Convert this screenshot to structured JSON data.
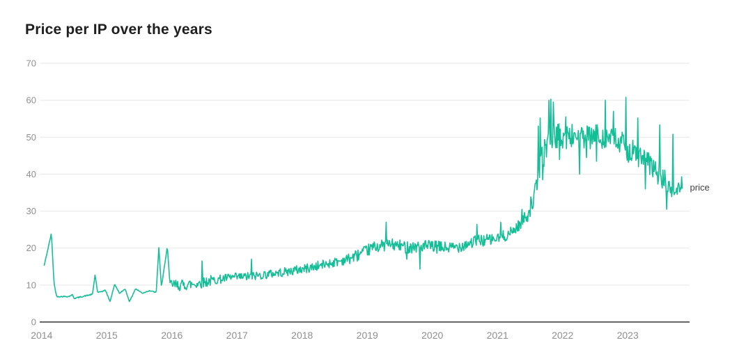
{
  "chart": {
    "title": "Price per IP over the years",
    "series_label": "price"
  },
  "colors": {
    "line": "#14be96",
    "grid": "#e7e7e7",
    "axis": "#333333",
    "tick": "#8f8f8f",
    "title": "#1e1e1e",
    "series_label": "#3f3f3f",
    "background": "#ffffff"
  },
  "chart_data": {
    "type": "line",
    "title": "Price per IP over the years",
    "xlabel": "",
    "ylabel": "",
    "x_ticks": [
      "2014",
      "2015",
      "2016",
      "2017",
      "2018",
      "2019",
      "2020",
      "2021",
      "2022",
      "2023"
    ],
    "y_ticks": [
      0,
      10,
      20,
      30,
      40,
      50,
      60,
      70
    ],
    "xlim": [
      2013.97,
      2023.95
    ],
    "ylim": [
      0,
      70
    ],
    "grid": "horizontal-only",
    "legend": {
      "position": "right-of-last-point",
      "label": "price"
    },
    "series": [
      {
        "name": "price",
        "color": "#14be96",
        "x_start": 2014.04,
        "x_end": 2023.84,
        "samples_per_year": 104,
        "seed": 42,
        "trend": [
          [
            2014.04,
            15.3
          ],
          [
            2014.15,
            24.0
          ],
          [
            2014.19,
            10.5
          ],
          [
            2014.23,
            6.9
          ],
          [
            2014.42,
            6.9
          ],
          [
            2014.47,
            7.4
          ],
          [
            2014.5,
            6.4
          ],
          [
            2014.78,
            7.5
          ],
          [
            2014.82,
            12.8
          ],
          [
            2014.86,
            7.9
          ],
          [
            2014.98,
            8.6
          ],
          [
            2015.05,
            5.5
          ],
          [
            2015.12,
            10.2
          ],
          [
            2015.2,
            7.7
          ],
          [
            2015.28,
            9.0
          ],
          [
            2015.35,
            5.5
          ],
          [
            2015.44,
            9.0
          ],
          [
            2015.55,
            7.8
          ],
          [
            2015.65,
            8.5
          ],
          [
            2015.76,
            8.0
          ],
          [
            2015.8,
            20.2
          ],
          [
            2015.84,
            9.4
          ],
          [
            2015.93,
            20.5
          ],
          [
            2015.97,
            10.2
          ],
          [
            2016.1,
            9.9
          ],
          [
            2016.35,
            10.3
          ],
          [
            2016.6,
            11.2
          ],
          [
            2016.9,
            12.0
          ],
          [
            2017.2,
            12.3
          ],
          [
            2017.5,
            13.0
          ],
          [
            2017.8,
            13.7
          ],
          [
            2018.1,
            14.6
          ],
          [
            2018.4,
            15.8
          ],
          [
            2018.7,
            17.0
          ],
          [
            2018.95,
            18.8
          ],
          [
            2019.1,
            20.3
          ],
          [
            2019.35,
            21.0
          ],
          [
            2019.6,
            20.3
          ],
          [
            2019.9,
            20.5
          ],
          [
            2020.1,
            20.2
          ],
          [
            2020.3,
            20.0
          ],
          [
            2020.5,
            21.0
          ],
          [
            2020.7,
            22.0
          ],
          [
            2020.9,
            22.3
          ],
          [
            2021.0,
            22.5
          ],
          [
            2021.2,
            24.0
          ],
          [
            2021.35,
            26.5
          ],
          [
            2021.45,
            29.0
          ],
          [
            2021.55,
            33.0
          ],
          [
            2021.62,
            38.0
          ],
          [
            2021.68,
            44.0
          ],
          [
            2021.74,
            47.0
          ],
          [
            2021.8,
            50.0
          ],
          [
            2021.9,
            50.5
          ],
          [
            2022.05,
            50.0
          ],
          [
            2022.2,
            50.5
          ],
          [
            2022.35,
            49.5
          ],
          [
            2022.5,
            50.0
          ],
          [
            2022.65,
            50.5
          ],
          [
            2022.8,
            49.0
          ],
          [
            2022.95,
            47.5
          ],
          [
            2023.1,
            45.5
          ],
          [
            2023.25,
            44.0
          ],
          [
            2023.4,
            41.5
          ],
          [
            2023.55,
            38.5
          ],
          [
            2023.65,
            35.5
          ],
          [
            2023.73,
            35.0
          ],
          [
            2023.79,
            36.5
          ],
          [
            2023.84,
            38.0
          ]
        ],
        "noise_segments": [
          {
            "from": 2014.04,
            "to": 2015.97,
            "amp": 0.15
          },
          {
            "from": 2015.97,
            "to": 2016.6,
            "amp": 1.5
          },
          {
            "from": 2016.6,
            "to": 2017.8,
            "amp": 1.2
          },
          {
            "from": 2017.8,
            "to": 2018.7,
            "amp": 1.3
          },
          {
            "from": 2018.7,
            "to": 2019.5,
            "amp": 1.6
          },
          {
            "from": 2019.5,
            "to": 2020.8,
            "amp": 1.7
          },
          {
            "from": 2020.8,
            "to": 2021.45,
            "amp": 1.6
          },
          {
            "from": 2021.45,
            "to": 2021.65,
            "amp": 2.6
          },
          {
            "from": 2021.65,
            "to": 2023.1,
            "amp": 3.6
          },
          {
            "from": 2023.1,
            "to": 2023.6,
            "amp": 3.2
          },
          {
            "from": 2023.6,
            "to": 2023.85,
            "amp": 2.2
          }
        ],
        "spikes": [
          [
            2016.46,
            16.5
          ],
          [
            2017.22,
            17.0
          ],
          [
            2019.29,
            27.0
          ],
          [
            2019.61,
            17.0
          ],
          [
            2019.81,
            14.3
          ],
          [
            2020.68,
            26.4
          ],
          [
            2021.05,
            27.0
          ],
          [
            2021.38,
            30.5
          ],
          [
            2021.63,
            53.0
          ],
          [
            2021.66,
            55.2
          ],
          [
            2021.69,
            38.5
          ],
          [
            2021.79,
            60.0
          ],
          [
            2021.82,
            60.3
          ],
          [
            2021.86,
            59.5
          ],
          [
            2021.95,
            44.0
          ],
          [
            2022.05,
            55.5
          ],
          [
            2022.26,
            40.0
          ],
          [
            2022.37,
            44.5
          ],
          [
            2022.52,
            43.5
          ],
          [
            2022.66,
            60.0
          ],
          [
            2022.78,
            57.0
          ],
          [
            2022.97,
            60.8
          ],
          [
            2023.16,
            55.2
          ],
          [
            2023.27,
            36.0
          ],
          [
            2023.49,
            53.3
          ],
          [
            2023.6,
            30.5
          ],
          [
            2023.69,
            50.8
          ]
        ]
      }
    ]
  }
}
